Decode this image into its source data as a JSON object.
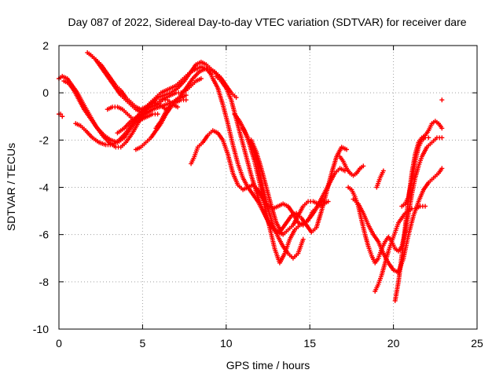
{
  "chart_data": {
    "type": "scatter",
    "title": "Day 087 of 2022, Sidereal Day-to-day VTEC variation (SDTVAR) for receiver dare",
    "xlabel": "GPS time / hours",
    "ylabel": "SDTVAR / TECUs",
    "xlim": [
      0,
      25
    ],
    "ylim": [
      -10,
      2
    ],
    "x_ticks": [
      0,
      5,
      10,
      15,
      20,
      25
    ],
    "y_ticks": [
      2,
      0,
      -2,
      -4,
      -6,
      -8,
      -10
    ],
    "x_tick_labels": [
      "0",
      "5",
      "10",
      "15",
      "20",
      "25"
    ],
    "y_tick_labels": [
      "2",
      "0",
      "-2",
      "-4",
      "-6",
      "-8",
      "-10"
    ],
    "grid": true,
    "marker": "+",
    "color": "#ff0000",
    "series": [
      {
        "x": [
          0.0,
          0.2,
          0.5,
          0.8,
          1.1,
          1.4,
          1.8,
          2.2,
          2.6,
          3.0,
          3.4,
          3.7,
          4.0,
          4.4,
          4.8,
          5.2,
          5.6,
          6.0,
          6.4,
          6.8,
          7.2,
          7.6,
          8.0,
          8.4,
          8.7,
          9.0,
          9.3,
          9.6,
          9.8,
          10.0
        ],
        "y": [
          0.6,
          0.7,
          0.6,
          0.3,
          0.0,
          -0.4,
          -0.9,
          -1.4,
          -1.8,
          -2.1,
          -2.3,
          -2.3,
          -2.1,
          -1.7,
          -1.2,
          -0.9,
          -0.7,
          -0.6,
          -0.5,
          -0.4,
          -0.2,
          0.2,
          0.6,
          0.9,
          1.0,
          1.0,
          0.9,
          0.7,
          0.5,
          0.3
        ]
      },
      {
        "x": [
          0.3,
          0.6,
          0.9,
          1.2,
          1.5,
          1.9,
          2.3,
          2.7,
          3.1,
          3.5,
          3.9,
          4.3,
          4.7,
          5.1,
          5.5,
          5.9,
          6.3,
          6.7,
          7.1,
          7.5,
          7.9,
          8.2,
          8.5,
          8.8,
          9.1,
          9.4,
          9.7,
          10.0,
          10.3,
          10.6
        ],
        "y": [
          0.5,
          0.4,
          0.1,
          -0.3,
          -0.7,
          -1.1,
          -1.5,
          -1.8,
          -2.0,
          -2.1,
          -1.9,
          -1.5,
          -1.1,
          -0.8,
          -0.5,
          -0.2,
          -0.1,
          0.0,
          0.2,
          0.5,
          0.9,
          1.2,
          1.3,
          1.2,
          1.0,
          0.8,
          0.6,
          0.3,
          0.0,
          -0.2
        ]
      },
      {
        "x": [
          1.0,
          1.3,
          1.6,
          2.0,
          2.4,
          2.8,
          3.2,
          3.6,
          4.0,
          4.4,
          4.8,
          5.2,
          5.6,
          6.0,
          6.4
        ],
        "y": [
          -1.3,
          -1.4,
          -1.6,
          -1.9,
          -2.1,
          -2.2,
          -2.2,
          -2.0,
          -1.7,
          -1.3,
          -0.9,
          -0.6,
          -0.4,
          -0.5,
          -0.7
        ]
      },
      {
        "x": [
          1.7,
          1.9,
          2.2,
          2.5,
          2.8,
          3.1,
          3.4,
          3.7,
          4.0,
          4.3,
          4.6,
          4.9,
          5.2,
          5.5,
          5.8,
          6.1,
          6.4,
          6.7,
          7.0,
          7.3,
          7.6,
          7.9,
          8.2,
          8.5
        ],
        "y": [
          1.7,
          1.6,
          1.4,
          1.1,
          0.8,
          0.5,
          0.2,
          -0.1,
          -0.3,
          -0.5,
          -0.7,
          -0.8,
          -0.7,
          -0.6,
          -0.5,
          -0.3,
          -0.2,
          -0.1,
          0.0,
          0.0,
          0.1,
          0.3,
          0.5,
          0.6
        ]
      },
      {
        "x": [
          1.9,
          2.2,
          2.5,
          2.8,
          3.1,
          3.4,
          3.7,
          4.0,
          4.3,
          4.6,
          4.9,
          5.2,
          5.5,
          5.8,
          6.1,
          6.4,
          6.7,
          7.0,
          7.3,
          7.6,
          7.9,
          8.2,
          8.5,
          8.8,
          9.1
        ],
        "y": [
          1.6,
          1.4,
          1.2,
          0.9,
          0.6,
          0.3,
          0.1,
          -0.2,
          -0.4,
          -0.6,
          -0.7,
          -0.6,
          -0.4,
          -0.2,
          0.0,
          0.1,
          0.2,
          0.3,
          0.5,
          0.7,
          0.9,
          1.0,
          1.1,
          1.0,
          0.8
        ]
      },
      {
        "x": [
          2.9,
          3.2,
          3.5,
          3.8,
          4.1,
          4.4,
          4.7,
          5.0,
          5.3,
          5.6,
          5.9
        ],
        "y": [
          -0.7,
          -0.6,
          -0.6,
          -0.7,
          -0.9,
          -1.1,
          -1.2,
          -1.1,
          -1.0,
          -0.9,
          -0.9
        ]
      },
      {
        "x": [
          3.5,
          3.9,
          4.3,
          4.7,
          5.0,
          5.3,
          5.6,
          5.9,
          6.2,
          6.5,
          6.8,
          7.1
        ],
        "y": [
          -1.7,
          -1.5,
          -1.2,
          -1.0,
          -0.9,
          -0.8,
          -0.7,
          -0.5,
          -0.3,
          -0.3,
          -0.5,
          -0.6
        ]
      },
      {
        "x": [
          4.6,
          4.9,
          5.2,
          5.5,
          5.8,
          6.1,
          6.4,
          6.7,
          7.0,
          7.3,
          7.6
        ],
        "y": [
          -2.4,
          -2.3,
          -2.1,
          -1.9,
          -1.6,
          -1.3,
          -0.9,
          -0.6,
          -0.4,
          -0.3,
          -0.3
        ]
      },
      {
        "x": [
          5.8,
          6.1,
          6.4,
          6.7,
          7.0,
          7.3,
          7.6
        ],
        "y": [
          -1.5,
          -1.2,
          -0.8,
          -0.5,
          -0.3,
          -0.2,
          -0.1
        ]
      },
      {
        "x": [
          0.0,
          0.1,
          0.2
        ],
        "y": [
          -0.9,
          -0.9,
          -1.0
        ]
      },
      {
        "x": [
          7.9,
          8.1,
          8.3,
          8.6,
          8.9,
          9.2,
          9.5,
          9.8,
          10.1,
          10.4,
          10.7,
          11.0,
          11.3,
          11.6,
          11.9,
          12.2,
          12.5,
          12.8,
          13.1,
          13.4,
          13.7,
          14.0,
          14.3,
          14.6,
          14.9,
          15.2,
          15.5,
          15.8,
          16.1
        ],
        "y": [
          -3.0,
          -2.7,
          -2.3,
          -2.1,
          -1.8,
          -1.6,
          -1.7,
          -2.0,
          -2.6,
          -3.4,
          -3.9,
          -4.1,
          -4.0,
          -3.9,
          -4.1,
          -4.5,
          -4.8,
          -4.9,
          -4.8,
          -4.7,
          -4.8,
          -5.1,
          -5.5,
          -5.6,
          -5.4,
          -5.0,
          -4.8,
          -4.7,
          -4.6
        ]
      },
      {
        "x": [
          9.0,
          9.2,
          9.5,
          9.8,
          10.1,
          10.4,
          10.7,
          11.0,
          11.3,
          11.6,
          11.9,
          12.2,
          12.5,
          12.8,
          13.1,
          13.4,
          13.7,
          14.0,
          14.3,
          14.6,
          14.9,
          15.2,
          15.5,
          15.8
        ],
        "y": [
          0.9,
          0.6,
          0.2,
          -0.5,
          -1.3,
          -2.2,
          -3.0,
          -3.6,
          -4.0,
          -4.3,
          -4.6,
          -5.0,
          -5.4,
          -5.7,
          -5.9,
          -6.0,
          -5.8,
          -5.6,
          -5.2,
          -4.8,
          -4.6,
          -4.6,
          -4.7,
          -4.6
        ]
      },
      {
        "x": [
          9.4,
          9.7,
          10.0,
          10.3,
          10.6,
          10.9,
          11.2,
          11.5,
          11.8,
          12.1,
          12.4,
          12.7,
          13.0,
          13.3,
          13.6,
          13.9,
          14.2,
          14.5,
          14.8,
          15.1,
          15.4,
          15.7,
          16.0,
          16.3,
          16.6,
          16.9,
          17.2
        ],
        "y": [
          0.7,
          0.5,
          0.2,
          -0.3,
          -1.1,
          -1.9,
          -2.7,
          -3.5,
          -4.2,
          -4.8,
          -5.3,
          -5.7,
          -5.9,
          -5.8,
          -5.5,
          -5.2,
          -5.1,
          -5.3,
          -5.6,
          -5.9,
          -5.7,
          -5.0,
          -4.2,
          -3.4,
          -2.7,
          -2.3,
          -2.4
        ]
      },
      {
        "x": [
          10.5,
          10.8,
          11.1,
          11.4,
          11.7,
          12.0,
          12.3,
          12.6,
          12.9,
          13.2,
          13.5,
          13.8,
          14.1,
          14.4,
          14.7,
          15.0,
          15.3,
          15.6,
          15.9,
          16.2,
          16.5,
          16.8,
          17.1
        ],
        "y": [
          -0.9,
          -1.2,
          -1.6,
          -2.2,
          -2.9,
          -3.8,
          -4.8,
          -5.7,
          -6.6,
          -7.2,
          -6.8,
          -6.2,
          -5.8,
          -5.6,
          -5.5,
          -5.3,
          -5.0,
          -4.6,
          -4.2,
          -3.8,
          -3.4,
          -3.2,
          -3.3
        ]
      },
      {
        "x": [
          11.0,
          11.3,
          11.6,
          11.9,
          12.2,
          12.5,
          12.8,
          13.1,
          13.4,
          13.7,
          14.0,
          14.3,
          14.6
        ],
        "y": [
          -1.5,
          -1.9,
          -2.4,
          -3.1,
          -4.0,
          -4.9,
          -5.6,
          -6.1,
          -6.5,
          -6.8,
          -7.0,
          -6.8,
          -6.2
        ]
      },
      {
        "x": [
          11.5,
          11.8,
          12.1,
          12.4,
          12.7,
          13.0,
          13.3
        ],
        "y": [
          -2.0,
          -2.5,
          -3.2,
          -4.0,
          -4.8,
          -5.5,
          -5.9
        ]
      },
      {
        "x": [
          16.8,
          17.0,
          17.2,
          17.4,
          17.6,
          17.8,
          18.0,
          18.2
        ],
        "y": [
          -2.7,
          -2.9,
          -3.2,
          -3.4,
          -3.5,
          -3.4,
          -3.2,
          -3.1
        ]
      },
      {
        "x": [
          17.3,
          17.5,
          17.7,
          17.9,
          18.1,
          18.3,
          18.5,
          18.7,
          18.9,
          19.1,
          19.3,
          19.5,
          19.7,
          19.9,
          20.1,
          20.3,
          20.5,
          20.7,
          20.9,
          21.1,
          21.3,
          21.5,
          21.7,
          22.0,
          22.3,
          22.6,
          22.9
        ],
        "y": [
          -4.0,
          -4.1,
          -4.4,
          -4.8,
          -5.4,
          -6.0,
          -6.5,
          -6.9,
          -7.2,
          -7.0,
          -6.6,
          -6.3,
          -6.1,
          -6.3,
          -6.6,
          -6.7,
          -6.5,
          -5.9,
          -5.1,
          -4.3,
          -3.6,
          -3.1,
          -2.7,
          -2.3,
          -2.1,
          -1.9,
          -1.9
        ]
      },
      {
        "x": [
          17.6,
          17.9,
          18.2,
          18.5,
          18.8,
          19.1,
          19.4,
          19.7,
          20.0,
          20.3,
          20.6,
          20.9,
          21.2,
          21.5,
          21.8,
          22.1,
          22.4,
          22.7,
          22.9
        ],
        "y": [
          -4.5,
          -4.7,
          -5.1,
          -5.6,
          -6.0,
          -6.3,
          -6.8,
          -7.2,
          -7.5,
          -7.6,
          -7.0,
          -6.0,
          -5.2,
          -4.6,
          -4.1,
          -3.8,
          -3.6,
          -3.4,
          -3.2
        ]
      },
      {
        "x": [
          18.9,
          19.1,
          19.3,
          19.5,
          19.7,
          19.9,
          20.1,
          20.3,
          20.5,
          20.7,
          20.9,
          21.1,
          21.3,
          21.6,
          21.9
        ],
        "y": [
          -8.4,
          -8.1,
          -7.7,
          -7.2,
          -6.7,
          -6.3,
          -5.9,
          -5.5,
          -5.3,
          -5.1,
          -5.0,
          -4.9,
          -4.9,
          -4.8,
          -4.8
        ]
      },
      {
        "x": [
          20.1,
          20.3,
          20.5,
          20.7,
          20.9,
          21.1,
          21.3,
          21.5,
          21.7,
          21.9,
          22.1,
          22.3,
          22.5,
          22.7,
          22.9
        ],
        "y": [
          -8.8,
          -8.0,
          -6.9,
          -5.7,
          -4.5,
          -3.4,
          -2.6,
          -2.1,
          -1.9,
          -1.8,
          -1.6,
          -1.3,
          -1.2,
          -1.3,
          -1.5
        ]
      },
      {
        "x": [
          20.5,
          20.7,
          20.9,
          21.1,
          21.3,
          21.5,
          21.7,
          21.9,
          22.1
        ],
        "y": [
          -4.8,
          -4.7,
          -4.4,
          -3.7,
          -2.9,
          -2.3,
          -2.0,
          -1.9,
          -1.9
        ]
      },
      {
        "x": [
          19.0,
          19.2,
          19.4
        ],
        "y": [
          -4.0,
          -3.6,
          -3.3
        ]
      },
      {
        "x": [
          22.9
        ],
        "y": [
          -0.3
        ]
      }
    ]
  }
}
